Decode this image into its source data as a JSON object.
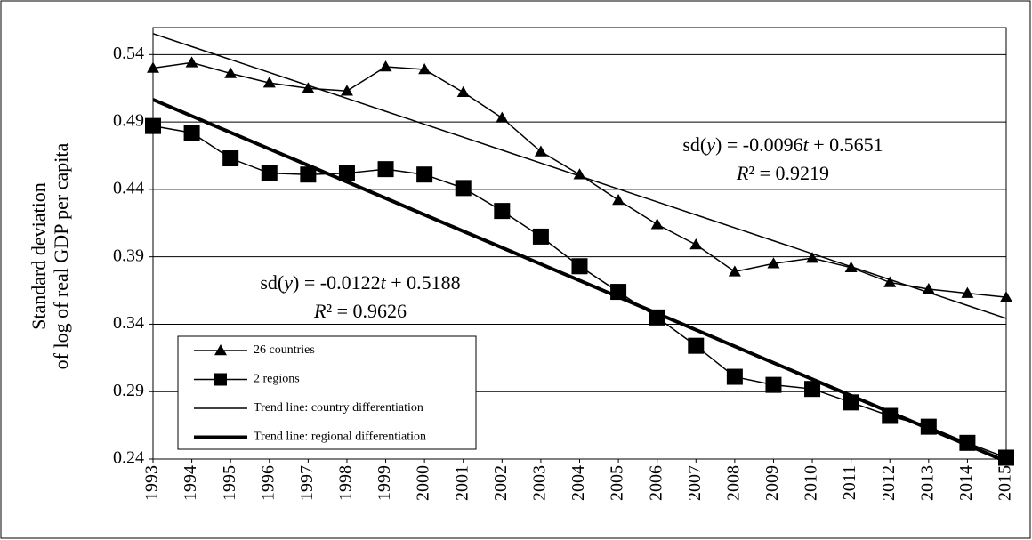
{
  "chart_data": {
    "type": "line",
    "y_label_lines": [
      "Standard deviation",
      "of log of real GDP per capita"
    ],
    "x": [
      1993,
      1994,
      1995,
      1996,
      1997,
      1998,
      1999,
      2000,
      2001,
      2002,
      2003,
      2004,
      2005,
      2006,
      2007,
      2008,
      2009,
      2010,
      2011,
      2012,
      2013,
      2014,
      2015
    ],
    "xlim": [
      1993,
      2015
    ],
    "xticks": [
      1993,
      1994,
      1995,
      1996,
      1997,
      1998,
      1999,
      2000,
      2001,
      2002,
      2003,
      2004,
      2005,
      2006,
      2007,
      2008,
      2009,
      2010,
      2011,
      2012,
      2013,
      2014,
      2015
    ],
    "ylim": [
      0.24,
      0.56
    ],
    "yticks": [
      0.24,
      0.29,
      0.34,
      0.39,
      0.44,
      0.49,
      0.54
    ],
    "grid": true,
    "series": [
      {
        "name": "26 countries",
        "color": "#000000",
        "marker": "triangle",
        "width": 1.5,
        "values": [
          0.53,
          0.534,
          0.526,
          0.519,
          0.515,
          0.513,
          0.531,
          0.529,
          0.512,
          0.493,
          0.468,
          0.451,
          0.432,
          0.414,
          0.399,
          0.379,
          0.385,
          0.389,
          0.382,
          0.371,
          0.366,
          0.363,
          0.36
        ]
      },
      {
        "name": "2 regions",
        "color": "#000000",
        "marker": "square",
        "width": 1.5,
        "values": [
          0.487,
          0.482,
          0.463,
          0.452,
          0.451,
          0.452,
          0.455,
          0.451,
          0.441,
          0.424,
          0.405,
          0.383,
          0.364,
          0.345,
          0.324,
          0.301,
          0.295,
          0.292,
          0.282,
          0.272,
          0.264,
          0.252,
          0.241
        ]
      },
      {
        "name": "Trend line: country differentiation",
        "color": "#000000",
        "marker": null,
        "width": 1.5,
        "values": [
          0.5555,
          0.5459,
          0.5363,
          0.5267,
          0.5171,
          0.5075,
          0.4979,
          0.4883,
          0.4787,
          0.4691,
          0.4595,
          0.4499,
          0.4403,
          0.4307,
          0.4211,
          0.4115,
          0.4019,
          0.3923,
          0.3827,
          0.3731,
          0.3635,
          0.3539,
          0.3443
        ]
      },
      {
        "name": "Trend line: regional differentiation",
        "color": "#000000",
        "marker": null,
        "width": 4,
        "values": [
          0.5066,
          0.4944,
          0.4822,
          0.47,
          0.4578,
          0.4456,
          0.4334,
          0.4212,
          0.409,
          0.3968,
          0.3846,
          0.3724,
          0.3602,
          0.348,
          0.3358,
          0.3236,
          0.3114,
          0.2992,
          0.287,
          0.2748,
          0.2626,
          0.2504,
          0.2382
        ]
      }
    ],
    "legend": "lower-left",
    "annotations": [
      {
        "equation": [
          "sd(",
          "y",
          ") = -0.0096",
          "t",
          " + 0.5651"
        ],
        "r2": [
          "R",
          "² = 0.9219"
        ]
      },
      {
        "equation": [
          "sd(",
          "y",
          ") = -0.0122",
          "t",
          " + 0.5188"
        ],
        "r2": [
          "R",
          "² = 0.9626"
        ]
      }
    ]
  }
}
